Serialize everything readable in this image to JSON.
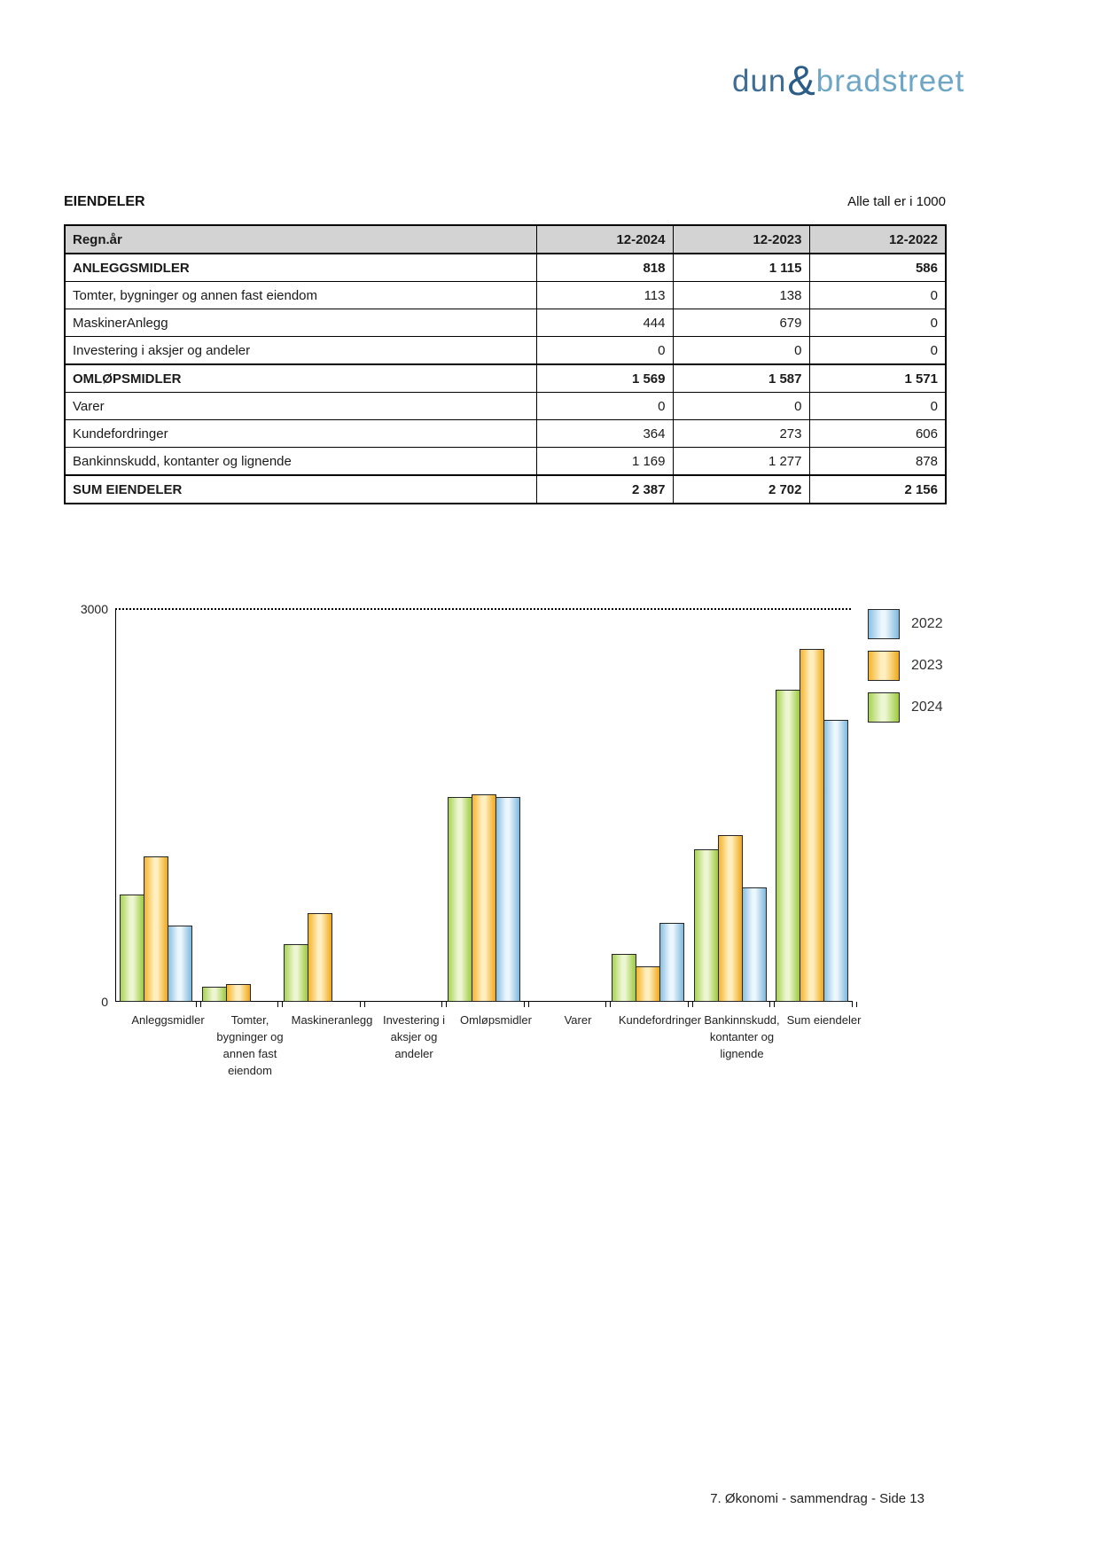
{
  "logo": {
    "part1": "dun",
    "amp": "&",
    "part2": "bradstreet"
  },
  "header": {
    "title": "EIENDELER",
    "note": "Alle tall er i 1000"
  },
  "table": {
    "columns": [
      "Regn.år",
      "12-2024",
      "12-2023",
      "12-2022"
    ],
    "rows": [
      {
        "label": "ANLEGGSMIDLER",
        "values": [
          "818",
          "1 115",
          "586"
        ],
        "bold": true
      },
      {
        "label": "Tomter, bygninger og annen fast eiendom",
        "values": [
          "113",
          "138",
          "0"
        ],
        "bold": false
      },
      {
        "label": "MaskinerAnlegg",
        "values": [
          "444",
          "679",
          "0"
        ],
        "bold": false
      },
      {
        "label": "Investering i aksjer og andeler",
        "values": [
          "0",
          "0",
          "0"
        ],
        "bold": false
      },
      {
        "label": "OMLØPSMIDLER",
        "values": [
          "1 569",
          "1 587",
          "1 571"
        ],
        "bold": true
      },
      {
        "label": "Varer",
        "values": [
          "0",
          "0",
          "0"
        ],
        "bold": false
      },
      {
        "label": "Kundefordringer",
        "values": [
          "364",
          "273",
          "606"
        ],
        "bold": false
      },
      {
        "label": "Bankinnskudd, kontanter og lignende",
        "values": [
          "1 169",
          "1 277",
          "878"
        ],
        "bold": false
      },
      {
        "label": "SUM EIENDELER",
        "values": [
          "2 387",
          "2 702",
          "2 156"
        ],
        "bold": true
      }
    ]
  },
  "chart_data": {
    "type": "bar",
    "title": "",
    "xlabel": "",
    "ylabel": "",
    "ylim": [
      0,
      3000
    ],
    "y_axis_labels": {
      "top": "3000",
      "bottom": "0"
    },
    "grid": "dotted line at y=3000 only",
    "legend_position": "top-right",
    "categories": [
      "Anleggsmidler",
      "Tomter, bygninger og annen fast eiendom",
      "Maskineranlegg",
      "Investering i aksjer og andeler",
      "Omløpsmidler",
      "Varer",
      "Kundefordringer",
      "Bankinnskudd, kontanter og lignende",
      "Sum eiendeler"
    ],
    "category_lines": [
      [
        "Anleggsmidler"
      ],
      [
        "Tomter,",
        "bygninger og",
        "annen fast",
        "eiendom"
      ],
      [
        "Maskineranlegg"
      ],
      [
        "Investering i",
        "aksjer og",
        "andeler"
      ],
      [
        "Omløpsmidler"
      ],
      [
        "Varer"
      ],
      [
        "Kundefordringer"
      ],
      [
        "Bankinnskudd,",
        "kontanter og",
        "lignende"
      ],
      [
        "Sum eiendeler"
      ]
    ],
    "series": [
      {
        "name": "2024",
        "values": [
          818,
          113,
          444,
          0,
          1569,
          0,
          364,
          1169,
          2387
        ],
        "colors": {
          "edge_left": "#a8d355",
          "mid": "#edf6d2",
          "edge_right": "#9cca3e"
        }
      },
      {
        "name": "2023",
        "values": [
          1115,
          138,
          679,
          0,
          1587,
          0,
          273,
          1277,
          2702
        ],
        "colors": {
          "edge_left": "#f5b42c",
          "mid": "#ffefc0",
          "edge_right": "#efa81a"
        }
      },
      {
        "name": "2022",
        "values": [
          586,
          0,
          0,
          0,
          1571,
          0,
          606,
          878,
          2156
        ],
        "colors": {
          "edge_left": "#8ac0e2",
          "mid": "#ecf6fd",
          "edge_right": "#7fb9de"
        }
      }
    ],
    "bar_order": [
      "2024",
      "2023",
      "2022"
    ],
    "legend_order": [
      "2022",
      "2023",
      "2024"
    ]
  },
  "footer": {
    "text": "7. Økonomi - sammendrag - Side 13"
  },
  "colors": {
    "logo_dun": "#3f6d94",
    "logo_ampersand": "#2b5d87",
    "logo_bradstreet": "#6ea6c6",
    "table_header_bg": "#d3d3d3",
    "bar_outline": "#262626"
  }
}
